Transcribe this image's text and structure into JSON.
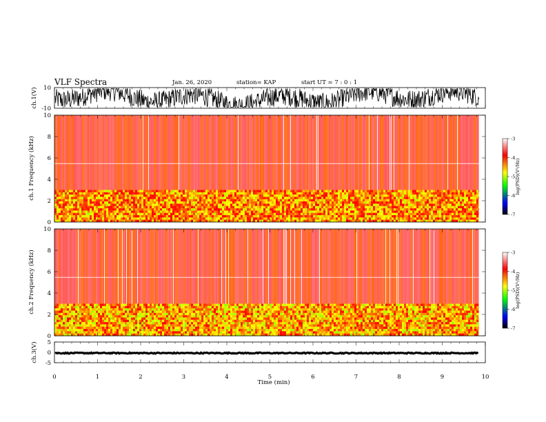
{
  "header": {
    "title": "VLF Spectra",
    "date": "Jan. 26, 2020",
    "station": "station= KAP",
    "start": "start  UT  =   7 : 0  : 1"
  },
  "colors": {
    "spectral_scale": [
      "#ffffff",
      "#ff0000",
      "#ffff00",
      "#00ff00",
      "#0000ff",
      "#000000"
    ],
    "trace": "#000000",
    "background": "#ffffff"
  },
  "chart_data": [
    {
      "type": "line",
      "panel": "ch1-waveform",
      "ylabel": "ch.1(V)",
      "ylim": [
        -10,
        10
      ],
      "yticks": [
        "10",
        "-10"
      ],
      "xlim": [
        0,
        10
      ],
      "t_end": 9.85,
      "series": [
        {
          "values_range": [
            -9,
            9
          ]
        }
      ]
    },
    {
      "type": "heatmap",
      "panel": "ch1-spectrogram",
      "ylabel": "ch.1 Frequency  (kHz)",
      "ylim": [
        0,
        10
      ],
      "yticks": [
        "0",
        "2",
        "4",
        "6",
        "8",
        "10"
      ],
      "xlim": [
        0,
        10
      ],
      "t_end": 9.85,
      "bands": [
        {
          "f_low": 0,
          "f_high": 3,
          "value": -4.5
        },
        {
          "f_low": 3,
          "f_high": 10,
          "value": -3.7
        }
      ],
      "colorbar": {
        "label": "log(PSD)(V²/Hz)",
        "range": [
          -7,
          -3
        ],
        "ticks": [
          "-3",
          "-4",
          "-5",
          "-6",
          "-7"
        ]
      }
    },
    {
      "type": "heatmap",
      "panel": "ch2-spectrogram",
      "ylabel": "ch.2 Frequency  (kHz)",
      "ylim": [
        0,
        10
      ],
      "yticks": [
        "0",
        "2",
        "4",
        "6",
        "8",
        "10"
      ],
      "xlim": [
        0,
        10
      ],
      "t_end": 9.85,
      "bands": [
        {
          "f_low": 0,
          "f_high": 3,
          "value": -4.6
        },
        {
          "f_low": 3,
          "f_high": 10,
          "value": -3.7
        }
      ],
      "colorbar": {
        "label": "log(PSD)(V²/Hz)",
        "range": [
          -7,
          -3
        ],
        "ticks": [
          "-3",
          "-4",
          "-5",
          "-6",
          "-7"
        ]
      }
    },
    {
      "type": "line",
      "panel": "ch3-waveform",
      "ylabel": "ch.3(V)",
      "ylim": [
        -5,
        5
      ],
      "yticks": [
        "5",
        "0",
        "-5"
      ],
      "xlim": [
        0,
        10
      ],
      "t_end": 9.85,
      "series": [
        {
          "values_range": [
            -0.6,
            -0.1
          ]
        }
      ],
      "xlabel": "Time  (min)",
      "xticks": [
        "0",
        "1",
        "2",
        "3",
        "4",
        "5",
        "6",
        "7",
        "8",
        "9",
        "10"
      ]
    }
  ]
}
